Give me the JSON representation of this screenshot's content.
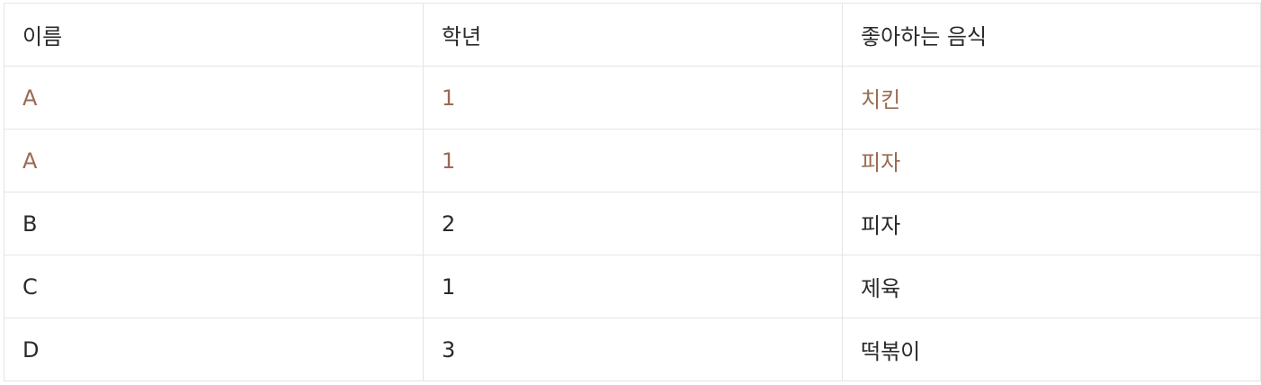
{
  "table": {
    "headers": [
      "이름",
      "학년",
      "좋아하는 음식"
    ],
    "rows": [
      {
        "name": "A",
        "grade": "1",
        "food": "치킨",
        "highlighted": true
      },
      {
        "name": "A",
        "grade": "1",
        "food": "피자",
        "highlighted": true
      },
      {
        "name": "B",
        "grade": "2",
        "food": "피자",
        "highlighted": false
      },
      {
        "name": "C",
        "grade": "1",
        "food": "제육",
        "highlighted": false
      },
      {
        "name": "D",
        "grade": "3",
        "food": "떡볶이",
        "highlighted": false
      }
    ]
  },
  "colors": {
    "highlight_text": "#9a6a52",
    "normal_text": "#2a2a2a",
    "border": "#e5e5e5"
  }
}
